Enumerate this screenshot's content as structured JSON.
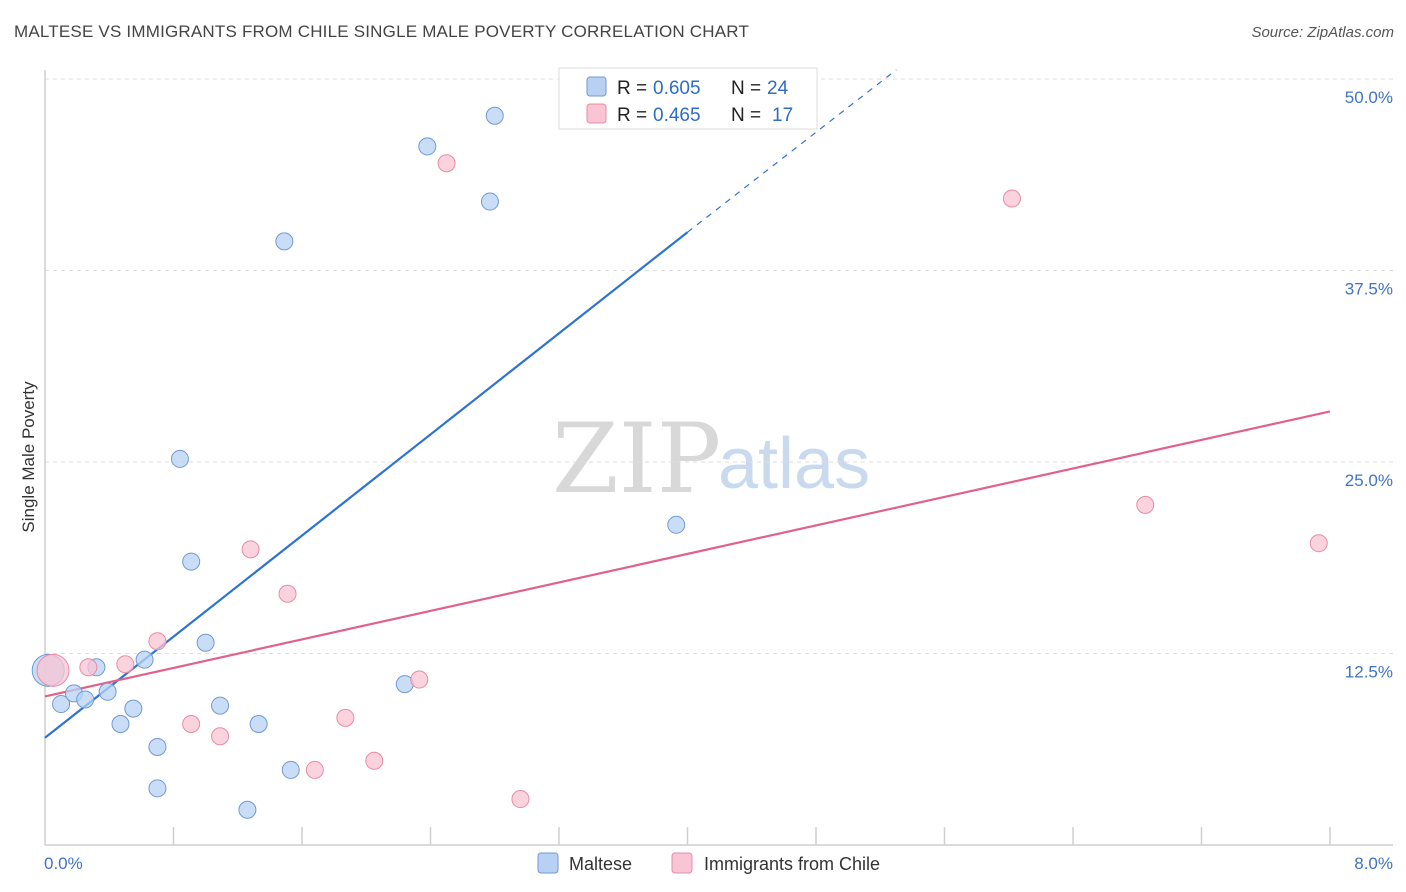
{
  "header": {
    "title": "MALTESE VS IMMIGRANTS FROM CHILE SINGLE MALE POVERTY CORRELATION CHART",
    "source": "Source: ZipAtlas.com"
  },
  "watermark": {
    "zip": "ZIP",
    "atlas": "atlas"
  },
  "stats": [
    {
      "swatch": "#b8d1f3",
      "r_label": "R =",
      "r_value": "0.605",
      "n_label": "N =",
      "n_value": "24"
    },
    {
      "swatch": "#f9c4d3",
      "r_label": "R =",
      "r_value": "0.465",
      "n_label": "N =",
      "n_value": "17"
    }
  ],
  "chart_data": {
    "type": "scatter",
    "title": "MALTESE VS IMMIGRANTS FROM CHILE SINGLE MALE POVERTY CORRELATION CHART",
    "xlabel": "",
    "ylabel": "Single Male Poverty",
    "xlim": [
      0,
      8
    ],
    "ylim": [
      0,
      50
    ],
    "x_tick_labels": [
      "0.0%",
      "8.0%"
    ],
    "y_ticks": [
      12.5,
      25.0,
      37.5,
      50.0
    ],
    "y_tick_labels": [
      "12.5%",
      "25.0%",
      "37.5%",
      "50.0%"
    ],
    "grid": true,
    "legend_position": "bottom-center",
    "series": [
      {
        "name": "Maltese",
        "color": "#b8d1f3",
        "stroke": "#6f9ad8",
        "line_color": "#2f73d1",
        "trend": {
          "x0": 0.0,
          "y0": 7.0,
          "x1": 4.0,
          "y1": 40.0,
          "dash_to_x": 5.3,
          "dash_to_y": 50.6
        },
        "points": [
          {
            "x": 0.02,
            "y": 11.4,
            "big": true
          },
          {
            "x": 0.1,
            "y": 9.2
          },
          {
            "x": 0.18,
            "y": 9.9
          },
          {
            "x": 0.25,
            "y": 9.5
          },
          {
            "x": 0.32,
            "y": 11.6
          },
          {
            "x": 0.39,
            "y": 10.0
          },
          {
            "x": 0.47,
            "y": 7.9
          },
          {
            "x": 0.55,
            "y": 8.9
          },
          {
            "x": 0.62,
            "y": 12.1
          },
          {
            "x": 0.7,
            "y": 6.4
          },
          {
            "x": 0.7,
            "y": 3.7
          },
          {
            "x": 0.84,
            "y": 25.2
          },
          {
            "x": 0.91,
            "y": 18.5
          },
          {
            "x": 1.0,
            "y": 13.2
          },
          {
            "x": 1.09,
            "y": 9.1
          },
          {
            "x": 1.26,
            "y": 2.3
          },
          {
            "x": 1.33,
            "y": 7.9
          },
          {
            "x": 1.49,
            "y": 39.4
          },
          {
            "x": 1.53,
            "y": 4.9
          },
          {
            "x": 2.24,
            "y": 10.5
          },
          {
            "x": 2.38,
            "y": 45.6
          },
          {
            "x": 2.77,
            "y": 42.0
          },
          {
            "x": 2.8,
            "y": 47.6
          },
          {
            "x": 3.93,
            "y": 20.9
          }
        ]
      },
      {
        "name": "Immigrants from Chile",
        "color": "#f9c4d3",
        "stroke": "#e88ba6",
        "line_color": "#e0628b",
        "trend": {
          "x0": 0.0,
          "y0": 9.7,
          "x1": 8.0,
          "y1": 28.3
        },
        "points": [
          {
            "x": 0.05,
            "y": 11.4,
            "big": true
          },
          {
            "x": 0.27,
            "y": 11.6
          },
          {
            "x": 0.5,
            "y": 11.8
          },
          {
            "x": 0.7,
            "y": 13.3
          },
          {
            "x": 0.91,
            "y": 7.9
          },
          {
            "x": 1.09,
            "y": 7.1
          },
          {
            "x": 1.28,
            "y": 19.3
          },
          {
            "x": 1.51,
            "y": 16.4
          },
          {
            "x": 1.68,
            "y": 4.9
          },
          {
            "x": 1.87,
            "y": 8.3
          },
          {
            "x": 2.05,
            "y": 5.5
          },
          {
            "x": 2.33,
            "y": 10.8
          },
          {
            "x": 2.5,
            "y": 44.5
          },
          {
            "x": 2.96,
            "y": 3.0
          },
          {
            "x": 6.02,
            "y": 42.2
          },
          {
            "x": 6.85,
            "y": 22.2
          },
          {
            "x": 7.93,
            "y": 19.7
          }
        ]
      }
    ]
  }
}
